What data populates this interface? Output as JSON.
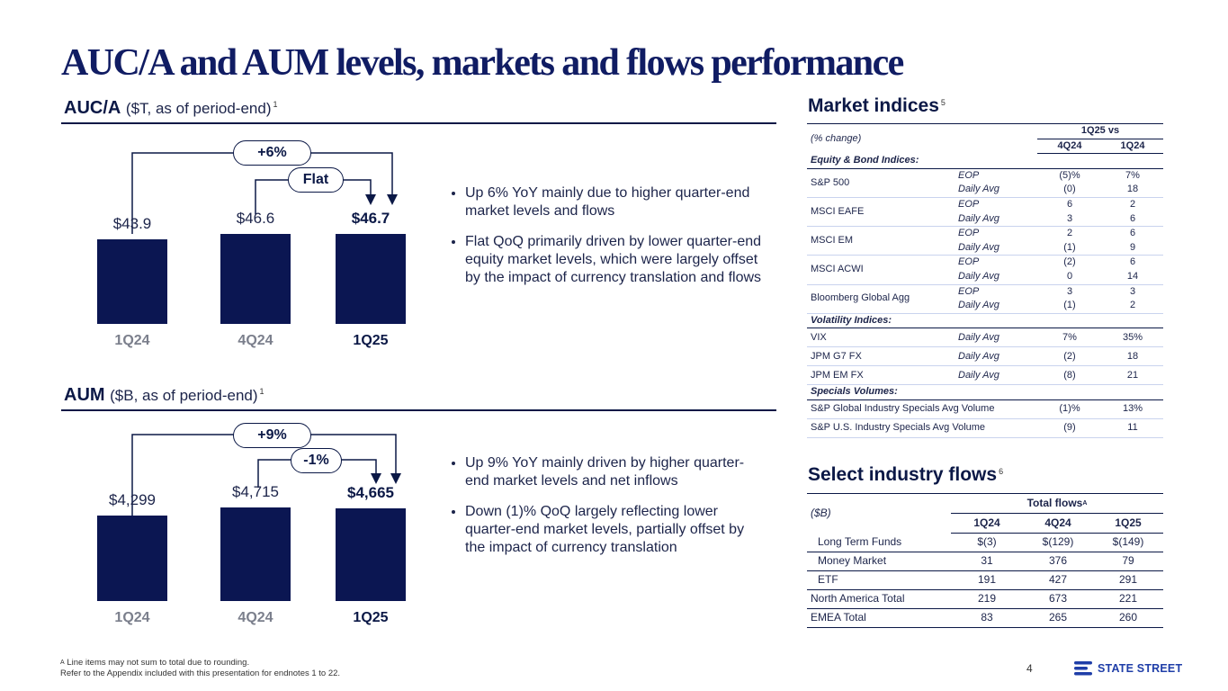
{
  "title": "AUC/A and AUM levels, markets and flows performance",
  "auca": {
    "heading": "AUC/A",
    "unit": "($T, as of period-end)",
    "note": "1",
    "bars": [
      {
        "label": "1Q24",
        "value": 43.9,
        "display": "$43.9"
      },
      {
        "label": "4Q24",
        "value": 46.6,
        "display": "$46.6"
      },
      {
        "label": "1Q25",
        "value": 46.7,
        "display": "$46.7"
      }
    ],
    "yoy_pill": "+6%",
    "qoq_pill": "Flat",
    "bullets": [
      "Up 6% YoY mainly due to higher quarter-end market levels and flows",
      "Flat QoQ primarily driven by lower quarter-end equity market levels, which were largely offset by the impact of currency translation and flows"
    ]
  },
  "aum": {
    "heading": "AUM",
    "unit": "($B, as of period-end)",
    "note": "1",
    "bars": [
      {
        "label": "1Q24",
        "value": 4299,
        "display": "$4,299"
      },
      {
        "label": "4Q24",
        "value": 4715,
        "display": "$4,715"
      },
      {
        "label": "1Q25",
        "value": 4665,
        "display": "$4,665"
      }
    ],
    "yoy_pill": "+9%",
    "qoq_pill": "-1%",
    "bullets": [
      "Up 9% YoY mainly driven by higher quarter-end market levels and net inflows",
      "Down (1)% QoQ largely reflecting lower quarter-end market levels, partially offset by the impact of currency translation"
    ]
  },
  "market": {
    "heading": "Market indices",
    "note": "5",
    "pct_change": "(% change)",
    "group_header": "1Q25 vs",
    "col1": "4Q24",
    "col2": "1Q24",
    "sections": [
      {
        "name": "Equity & Bond Indices:",
        "rows": [
          {
            "index": "S&P 500",
            "lines": [
              {
                "measure": "EOP",
                "v1": "(5)%",
                "v2": "7%"
              },
              {
                "measure": "Daily Avg",
                "v1": "(0)",
                "v2": "18"
              }
            ]
          },
          {
            "index": "MSCI EAFE",
            "lines": [
              {
                "measure": "EOP",
                "v1": "6",
                "v2": "2"
              },
              {
                "measure": "Daily Avg",
                "v1": "3",
                "v2": "6"
              }
            ]
          },
          {
            "index": "MSCI EM",
            "lines": [
              {
                "measure": "EOP",
                "v1": "2",
                "v2": "6"
              },
              {
                "measure": "Daily Avg",
                "v1": "(1)",
                "v2": "9"
              }
            ]
          },
          {
            "index": "MSCI ACWI",
            "lines": [
              {
                "measure": "EOP",
                "v1": "(2)",
                "v2": "6"
              },
              {
                "measure": "Daily Avg",
                "v1": "0",
                "v2": "14"
              }
            ]
          },
          {
            "index": "Bloomberg Global Agg",
            "lines": [
              {
                "measure": "EOP",
                "v1": "3",
                "v2": "3"
              },
              {
                "measure": "Daily Avg",
                "v1": "(1)",
                "v2": "2"
              }
            ]
          }
        ]
      },
      {
        "name": "Volatility Indices:",
        "rows": [
          {
            "index": "VIX",
            "lines": [
              {
                "measure": "Daily Avg",
                "v1": "7%",
                "v2": "35%"
              }
            ]
          },
          {
            "index": "JPM G7 FX",
            "lines": [
              {
                "measure": "Daily Avg",
                "v1": "(2)",
                "v2": "18"
              }
            ]
          },
          {
            "index": "JPM EM FX",
            "lines": [
              {
                "measure": "Daily Avg",
                "v1": "(8)",
                "v2": "21"
              }
            ]
          }
        ]
      },
      {
        "name": "Specials Volumes:",
        "rows": [
          {
            "index": "S&P Global Industry Specials Avg Volume",
            "lines": [
              {
                "measure": "",
                "v1": "(1)%",
                "v2": "13%"
              }
            ]
          },
          {
            "index": "S&P U.S. Industry Specials Avg Volume",
            "lines": [
              {
                "measure": "",
                "v1": "(9)",
                "v2": "11"
              }
            ]
          }
        ]
      }
    ]
  },
  "flows": {
    "heading": "Select industry flows",
    "note": "6",
    "unit": "($B)",
    "group_header": "Total flows",
    "group_note": "A",
    "columns": [
      "1Q24",
      "4Q24",
      "1Q25"
    ],
    "rows": [
      {
        "label": "Long Term Funds",
        "indent": true,
        "values": [
          "$(3)",
          "$(129)",
          "$(149)"
        ]
      },
      {
        "label": "Money Market",
        "indent": true,
        "values": [
          "31",
          "376",
          "79"
        ]
      },
      {
        "label": "ETF",
        "indent": true,
        "values": [
          "191",
          "427",
          "291"
        ]
      },
      {
        "label": "North America Total",
        "indent": false,
        "values": [
          "219",
          "673",
          "221"
        ]
      },
      {
        "label": "EMEA Total",
        "indent": false,
        "values": [
          "83",
          "265",
          "260"
        ]
      }
    ]
  },
  "footnotes": {
    "line1_mark": "A",
    "line1": "Line items may not sum to total due to rounding.",
    "line2": "Refer to the Appendix included with this presentation for endnotes 1 to 22."
  },
  "page_number": "4",
  "logo_text": "STATE STREET",
  "colors": {
    "navy": "#0b1652",
    "heading": "#101c63",
    "muted": "#7b7f8c"
  }
}
